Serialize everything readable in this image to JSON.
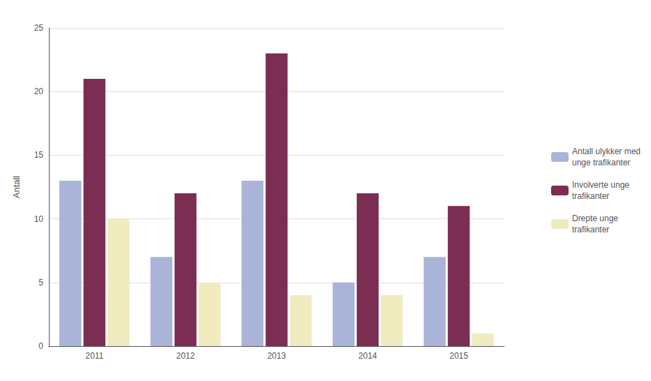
{
  "chart_data": {
    "type": "bar",
    "categories": [
      "2011",
      "2012",
      "2013",
      "2014",
      "2015"
    ],
    "series": [
      {
        "name": "Antall ulykker med\nunge trafikanter",
        "color": "#aab4d8",
        "values": [
          13,
          7,
          13,
          5,
          7
        ]
      },
      {
        "name": "Involverte unge\ntrafikanter",
        "color": "#7b2d52",
        "values": [
          21,
          12,
          23,
          12,
          11
        ]
      },
      {
        "name": "Drepte unge\ntrafikanter",
        "color": "#f0ecc0",
        "values": [
          10,
          5,
          4,
          4,
          1
        ]
      }
    ],
    "ylabel": "Antall",
    "ylim": [
      0,
      25
    ],
    "yticks": [
      0,
      5,
      10,
      15,
      20,
      25
    ],
    "grid": true,
    "legend": "right"
  }
}
